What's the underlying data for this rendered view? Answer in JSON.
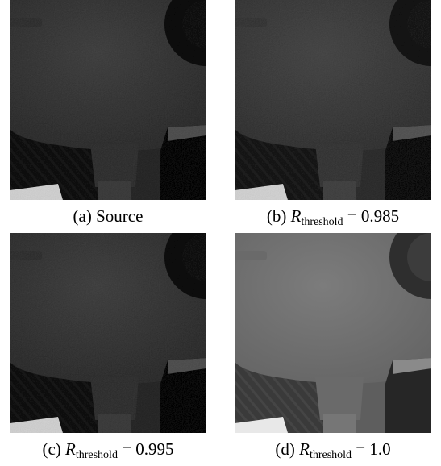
{
  "panels": [
    {
      "label": "(a)",
      "text": "Source"
    },
    {
      "label": "(b)",
      "symbol": "R",
      "subscript": "threshold",
      "relation": "=",
      "value": "0.985"
    },
    {
      "label": "(c)",
      "symbol": "R",
      "subscript": "threshold",
      "relation": "=",
      "value": "0.995"
    },
    {
      "label": "(d)",
      "symbol": "R",
      "subscript": "threshold",
      "relation": "=",
      "value": "1.0"
    }
  ]
}
